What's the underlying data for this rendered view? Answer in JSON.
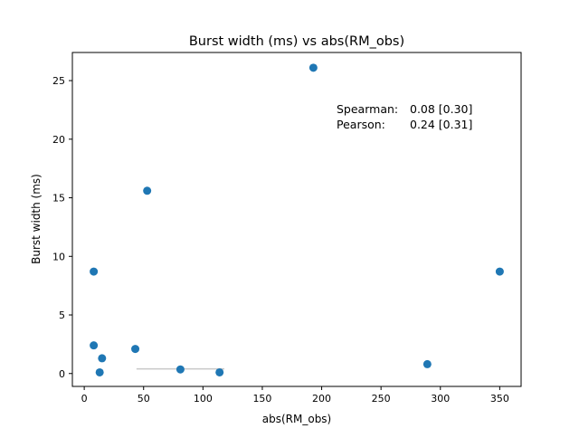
{
  "chart_data": {
    "type": "scatter",
    "title": "Burst width (ms) vs abs(RM_obs)",
    "xlabel": "abs(RM_obs)",
    "ylabel": "Burst width (ms)",
    "xlim": [
      -10,
      368
    ],
    "ylim": [
      -1.1,
      27.4
    ],
    "xticks": [
      0,
      50,
      100,
      150,
      200,
      250,
      300,
      350
    ],
    "yticks": [
      0,
      5,
      10,
      15,
      20,
      25
    ],
    "grid": false,
    "marker_color": "#1f77b4",
    "points": [
      {
        "x": 8,
        "y": 8.7
      },
      {
        "x": 8,
        "y": 2.4
      },
      {
        "x": 13,
        "y": 0.1
      },
      {
        "x": 15,
        "y": 1.3
      },
      {
        "x": 43,
        "y": 2.1
      },
      {
        "x": 53,
        "y": 15.6
      },
      {
        "x": 81,
        "y": 0.35
      },
      {
        "x": 114,
        "y": 0.1
      },
      {
        "x": 193,
        "y": 26.1
      },
      {
        "x": 289,
        "y": 0.8
      },
      {
        "x": 350,
        "y": 8.7
      }
    ],
    "error_bars": [
      {
        "x_from": 44,
        "x_to": 118,
        "y": 0.4,
        "color": "#c8c8c8"
      }
    ],
    "annotations": [
      {
        "label": "Spearman:",
        "value": "0.08 [0.30]"
      },
      {
        "label": "Pearson:",
        "value": "0.24 [0.31]"
      }
    ]
  }
}
